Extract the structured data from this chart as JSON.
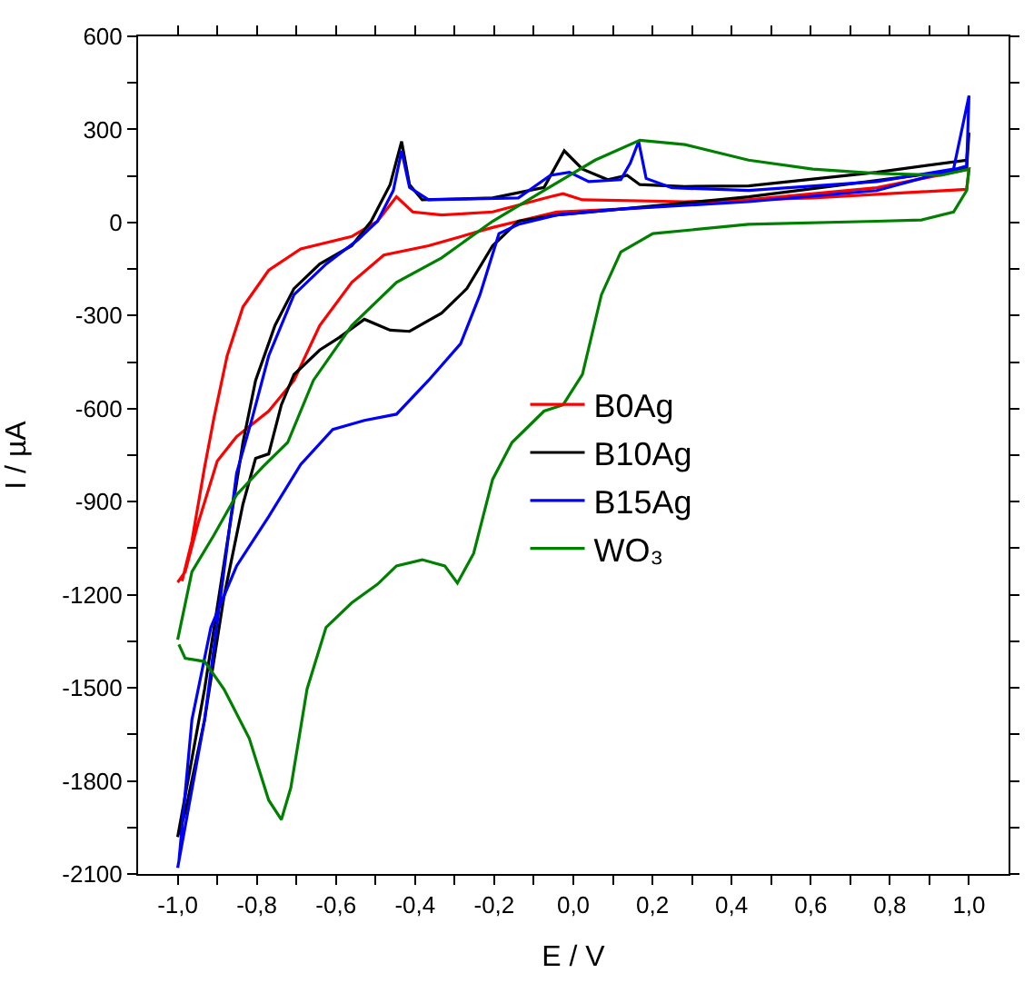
{
  "chart_data": {
    "type": "line",
    "xlabel": "E / V",
    "ylabel": "I / µA",
    "xlim": [
      -1.1,
      1.1
    ],
    "ylim": [
      -2100,
      600
    ],
    "xticks": [
      {
        "value": -1.0,
        "label": "-1,0"
      },
      {
        "value": -0.9,
        "label": null
      },
      {
        "value": -0.8,
        "label": "-0,8"
      },
      {
        "value": -0.7,
        "label": null
      },
      {
        "value": -0.6,
        "label": "-0,6"
      },
      {
        "value": -0.5,
        "label": null
      },
      {
        "value": -0.4,
        "label": "-0,4"
      },
      {
        "value": -0.3,
        "label": null
      },
      {
        "value": -0.2,
        "label": "-0,2"
      },
      {
        "value": -0.1,
        "label": null
      },
      {
        "value": 0.0,
        "label": "0,0"
      },
      {
        "value": 0.1,
        "label": null
      },
      {
        "value": 0.2,
        "label": "0,2"
      },
      {
        "value": 0.3,
        "label": null
      },
      {
        "value": 0.4,
        "label": "0,4"
      },
      {
        "value": 0.5,
        "label": null
      },
      {
        "value": 0.6,
        "label": "0,6"
      },
      {
        "value": 0.7,
        "label": null
      },
      {
        "value": 0.8,
        "label": "0,8"
      },
      {
        "value": 0.9,
        "label": null
      },
      {
        "value": 1.0,
        "label": "1,0"
      }
    ],
    "yticks": [
      -2100,
      {
        "value": -1950,
        "label": null
      },
      -1800,
      {
        "value": -1650,
        "label": null
      },
      -1500,
      {
        "value": -1350,
        "label": null
      },
      -1200,
      {
        "value": -1050,
        "label": null
      },
      -900,
      {
        "value": -750,
        "label": null
      },
      -600,
      {
        "value": -450,
        "label": null
      },
      -300,
      {
        "value": -150,
        "label": null
      },
      0,
      {
        "value": 150,
        "label": null
      },
      300,
      {
        "value": 450,
        "label": null
      },
      600
    ],
    "legend": "center right",
    "line_style": "solid",
    "marker": "none",
    "series": [
      {
        "name": "B0Ag",
        "color": "#ff0000",
        "x": [
          -0.989,
          -0.964,
          -0.932,
          -0.908,
          -0.875,
          -0.835,
          -0.77,
          -0.689,
          -0.56,
          -0.495,
          -0.447,
          -0.406,
          -0.333,
          -0.204,
          -0.058,
          -0.026,
          0.023,
          0.282,
          0.605,
          0.994,
          1.0,
          0.767,
          0.443,
          0.12,
          -0.042,
          -0.204,
          -0.366,
          -0.479,
          -0.56,
          -0.641,
          -0.706,
          -0.77,
          -0.851,
          -0.9,
          -0.948,
          -0.981,
          -1.0
        ],
        "values": [
          -1156,
          -1027,
          -789,
          -628,
          -430,
          -272,
          -154,
          -85,
          -45,
          4,
          83,
          34,
          24,
          34,
          83,
          93,
          73,
          67,
          79,
          107,
          172,
          112,
          73,
          43,
          34,
          -16,
          -75,
          -105,
          -193,
          -332,
          -509,
          -608,
          -690,
          -769,
          -968,
          -1126,
          -1160
        ]
      },
      {
        "name": "B10Ag",
        "color": "#000000",
        "x": [
          -1.0,
          -0.932,
          -0.867,
          -0.835,
          -0.803,
          -0.754,
          -0.706,
          -0.641,
          -0.56,
          -0.511,
          -0.463,
          -0.434,
          -0.414,
          -0.382,
          -0.204,
          -0.074,
          -0.023,
          0.023,
          0.087,
          0.136,
          0.168,
          0.282,
          0.443,
          0.767,
          0.994,
          1.0,
          0.994,
          0.443,
          0.12,
          -0.042,
          -0.139,
          -0.204,
          -0.269,
          -0.333,
          -0.414,
          -0.463,
          -0.528,
          -0.592,
          -0.641,
          -0.706,
          -0.738,
          -0.77,
          -0.803,
          -0.835,
          -0.883,
          -0.932,
          -0.981,
          -0.997
        ],
        "values": [
          -1981,
          -1504,
          -968,
          -709,
          -509,
          -332,
          -213,
          -134,
          -75,
          4,
          122,
          261,
          122,
          73,
          79,
          113,
          231,
          172,
          138,
          152,
          122,
          116,
          118,
          162,
          201,
          290,
          172,
          83,
          43,
          24,
          4,
          -75,
          -213,
          -292,
          -351,
          -347,
          -312,
          -371,
          -411,
          -490,
          -588,
          -746,
          -760,
          -908,
          -1206,
          -1603,
          -1901,
          -1972
        ]
      },
      {
        "name": "B15Ag",
        "color": "#0000ff",
        "x": [
          -1.0,
          -0.932,
          -0.851,
          -0.811,
          -0.77,
          -0.706,
          -0.625,
          -0.544,
          -0.495,
          -0.455,
          -0.434,
          -0.414,
          -0.366,
          -0.139,
          -0.058,
          -0.01,
          0.039,
          0.12,
          0.144,
          0.165,
          0.184,
          0.249,
          0.443,
          0.767,
          0.961,
          1.0,
          0.994,
          0.767,
          0.443,
          0.12,
          -0.042,
          -0.139,
          -0.188,
          -0.236,
          -0.285,
          -0.366,
          -0.447,
          -0.528,
          -0.608,
          -0.689,
          -0.77,
          -0.851,
          -0.916,
          -0.964,
          -0.997
        ],
        "values": [
          -2080,
          -1603,
          -808,
          -628,
          -430,
          -233,
          -134,
          -55,
          4,
          103,
          231,
          113,
          73,
          79,
          152,
          162,
          132,
          138,
          191,
          261,
          142,
          112,
          103,
          132,
          172,
          409,
          182,
          103,
          67,
          43,
          24,
          -6,
          -36,
          -233,
          -391,
          -509,
          -618,
          -638,
          -667,
          -780,
          -948,
          -1107,
          -1305,
          -1603,
          -2060
        ]
      },
      {
        "name": "WO₃",
        "color": "#008000",
        "x": [
          -1.0,
          -0.964,
          -0.908,
          -0.851,
          -0.786,
          -0.722,
          -0.657,
          -0.56,
          -0.447,
          -0.333,
          -0.204,
          -0.074,
          0.055,
          0.168,
          0.282,
          0.443,
          0.605,
          0.767,
          0.929,
          1.0,
          0.994,
          0.961,
          0.88,
          0.767,
          0.443,
          0.201,
          0.12,
          0.071,
          0.023,
          -0.026,
          -0.074,
          -0.155,
          -0.204,
          -0.252,
          -0.293,
          -0.325,
          -0.382,
          -0.447,
          -0.495,
          -0.56,
          -0.625,
          -0.673,
          -0.714,
          -0.738,
          -0.77,
          -0.819,
          -0.883,
          -0.932,
          -0.981,
          -0.997
        ],
        "values": [
          -1345,
          -1126,
          -1007,
          -878,
          -789,
          -709,
          -509,
          -332,
          -193,
          -114,
          4,
          103,
          201,
          265,
          251,
          201,
          172,
          158,
          152,
          172,
          103,
          34,
          8,
          4,
          -6,
          -36,
          -95,
          -233,
          -490,
          -588,
          -608,
          -709,
          -828,
          -1067,
          -1162,
          -1107,
          -1087,
          -1107,
          -1166,
          -1226,
          -1305,
          -1504,
          -1822,
          -1925,
          -1862,
          -1663,
          -1504,
          -1415,
          -1405,
          -1360
        ]
      }
    ]
  }
}
